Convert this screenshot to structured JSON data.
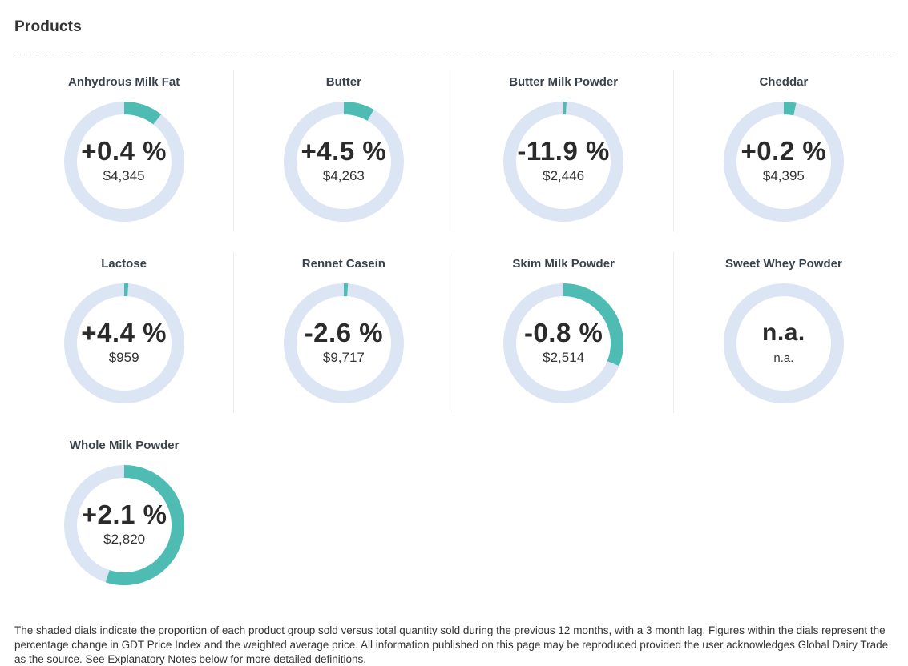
{
  "page": {
    "title": "Products"
  },
  "colors": {
    "arc_teal": "#4fbcb4",
    "ring_blue": "#dbe5f3",
    "divider": "#ececec",
    "heading_text": "#333333",
    "label_text": "#3a434b",
    "value_text": "#2b2b2b",
    "footer_text": "#333333"
  },
  "chart_data": {
    "type": "donut-dials",
    "description": "Shaded proportion of each product group sold versus total quantity sold, previous 12 months with 3 month lag; arc starts at 12 o'clock and sweeps clockwise",
    "products": [
      {
        "name": "Anhydrous Milk Fat",
        "change": "+0.4 %",
        "price": "$4,345",
        "arc_degrees": 38
      },
      {
        "name": "Butter",
        "change": "+4.5 %",
        "price": "$4,263",
        "arc_degrees": 30
      },
      {
        "name": "Butter Milk Powder",
        "change": "-11.9 %",
        "price": "$2,446",
        "arc_degrees": 3
      },
      {
        "name": "Cheddar",
        "change": "+0.2 %",
        "price": "$4,395",
        "arc_degrees": 12
      },
      {
        "name": "Lactose",
        "change": "+4.4 %",
        "price": "$959",
        "arc_degrees": 4
      },
      {
        "name": "Rennet Casein",
        "change": "-2.6 %",
        "price": "$9,717",
        "arc_degrees": 4
      },
      {
        "name": "Skim Milk Powder",
        "change": "-0.8 %",
        "price": "$2,514",
        "arc_degrees": 112
      },
      {
        "name": "Sweet Whey Powder",
        "change": "n.a.",
        "price": "n.a.",
        "arc_degrees": 0
      },
      {
        "name": "Whole Milk Powder",
        "change": "+2.1 %",
        "price": "$2,820",
        "arc_degrees": 198
      }
    ]
  },
  "footer": {
    "text": "The shaded dials indicate the proportion of each product group sold versus total quantity sold during the previous 12 months, with a 3 month lag. Figures within the dials represent the percentage change in GDT Price Index and the weighted average price. All information published on this page may be reproduced provided the user acknowledges Global Dairy Trade as the source. See Explanatory Notes below for more detailed definitions."
  }
}
